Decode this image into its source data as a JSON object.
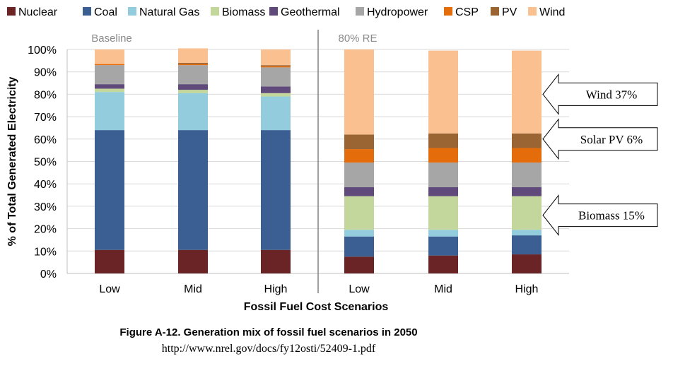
{
  "chart_data": {
    "type": "stacked-bar",
    "title": "",
    "ylabel": "% of Total Generated Electricity",
    "xlabel": "Fossil Fuel Cost Scenarios",
    "ylim": [
      0,
      100
    ],
    "yticks": [
      "0%",
      "10%",
      "20%",
      "30%",
      "40%",
      "50%",
      "60%",
      "70%",
      "80%",
      "90%",
      "100%"
    ],
    "legend_position": "top",
    "groups": [
      "Baseline",
      "80% RE"
    ],
    "categories": [
      "Low",
      "Mid",
      "High",
      "Low",
      "Mid",
      "High"
    ],
    "category_groups": [
      0,
      0,
      0,
      1,
      1,
      1
    ],
    "series": [
      {
        "name": "Nuclear",
        "color": "#6b2425",
        "values": [
          10.5,
          10.5,
          10.5,
          7.5,
          8,
          8.5
        ]
      },
      {
        "name": "Coal",
        "color": "#3b5f93",
        "values": [
          53.5,
          53.5,
          53.5,
          9,
          8.5,
          8.5
        ]
      },
      {
        "name": "Natural Gas",
        "color": "#93cddd",
        "values": [
          17,
          16.5,
          15,
          3,
          3,
          2.5
        ]
      },
      {
        "name": "Biomass",
        "color": "#c3d69b",
        "values": [
          1.5,
          1.5,
          1.5,
          15,
          15,
          15
        ]
      },
      {
        "name": "Geothermal",
        "color": "#604a7b",
        "values": [
          2,
          2.5,
          3,
          4,
          4,
          4
        ]
      },
      {
        "name": "Hydropower",
        "color": "#a6a6a6",
        "values": [
          8.5,
          8.5,
          8.5,
          11,
          11,
          11
        ]
      },
      {
        "name": "CSP",
        "color": "#e46c0a",
        "values": [
          0.5,
          0.5,
          0.5,
          6,
          6.5,
          6.5
        ]
      },
      {
        "name": "PV",
        "color": "#9b6433",
        "values": [
          0,
          0.5,
          0.5,
          6.5,
          6.5,
          6.5
        ]
      },
      {
        "name": "Wind",
        "color": "#fac090",
        "values": [
          6.5,
          6.5,
          7,
          38,
          37,
          37
        ]
      }
    ]
  },
  "callouts": [
    {
      "text": "Wind 37%",
      "target_value": 80
    },
    {
      "text": "Solar PV 6%",
      "target_value": 60
    },
    {
      "text": "Biomass 15%",
      "target_value": 26
    }
  ],
  "caption": "Figure A-12. Generation mix of fossil fuel scenarios in 2050",
  "source": "http://www.nrel.gov/docs/fy12osti/52409-1.pdf"
}
